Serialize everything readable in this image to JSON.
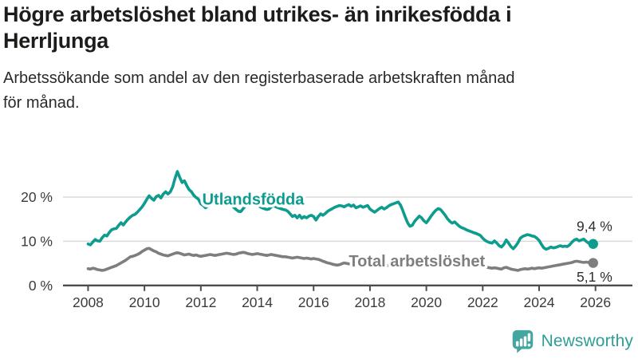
{
  "header": {
    "title": "Högre arbetslöshet bland utrikes- än inrikesfödda i Herrljunga",
    "title_lines": [
      "Högre arbetslöshet bland utrikes- än inrikesfödda i",
      "Herrljunga"
    ],
    "subtitle": "Arbetssökande som andel av den registerbaserade arbetskraften månad för månad.",
    "subtitle_lines": [
      "Arbetssökande som andel av den registerbaserade arbetskraften månad",
      "för månad."
    ]
  },
  "chart_data": {
    "type": "line",
    "title": "Högre arbetslöshet bland utrikes- än inrikesfödda i Herrljunga",
    "subtitle": "Arbetssökande som andel av den registerbaserade arbetskraften månad för månad.",
    "unit": "%",
    "grid": "horizontal",
    "legend": "inline-labels",
    "x_axis": {
      "lim": [
        2007.11,
        2027.31
      ],
      "ticks": [
        2008,
        2010,
        2012,
        2014,
        2016,
        2018,
        2020,
        2022,
        2024,
        2026
      ]
    },
    "y_axis": {
      "lim": [
        0,
        27.6
      ],
      "ticks": [
        {
          "value": 0,
          "label": "0 %"
        },
        {
          "value": 10,
          "label": "10 %"
        },
        {
          "value": 20,
          "label": "20 %"
        }
      ]
    },
    "colors": {
      "grid": "#d8d8d8",
      "axis": "#4c4c4c",
      "tick_text": "#3b3b3b",
      "end_label_text": "#2d2d2d"
    },
    "start_year": 2008,
    "points_per_year": 12,
    "series": [
      {
        "name": "Utlandsfödda",
        "color": "#0d9c8e",
        "end_label": "9,4 %",
        "end_value": 9.4,
        "end_label_position": "above",
        "label_anchor": {
          "year": 2012.05,
          "value": 19.6
        },
        "values": [
          9.4,
          9.2,
          9.8,
          10.4,
          10.1,
          10.0,
          10.8,
          11.4,
          11.2,
          12.0,
          12.6,
          12.8,
          12.9,
          13.6,
          14.2,
          13.7,
          14.4,
          15.0,
          15.5,
          15.9,
          16.1,
          16.6,
          17.2,
          17.8,
          18.6,
          19.5,
          20.3,
          19.7,
          19.3,
          20.1,
          20.4,
          19.8,
          20.7,
          21.2,
          20.7,
          21.2,
          22.3,
          24.2,
          25.8,
          24.5,
          23.3,
          23.7,
          22.6,
          21.7,
          21.2,
          20.4,
          19.9,
          19.5,
          18.5,
          18.1,
          17.6,
          18.0,
          18.5,
          18.8,
          18.5,
          18.9,
          18.5,
          18.2,
          18.7,
          19.0,
          18.8,
          18.3,
          17.7,
          17.2,
          16.8,
          16.7,
          17.4,
          18.0,
          18.4,
          18.7,
          18.3,
          18.5,
          18.2,
          17.9,
          17.6,
          17.4,
          17.2,
          17.3,
          17.8,
          18.1,
          17.8,
          17.6,
          17.4,
          17.2,
          17.1,
          16.8,
          16.2,
          15.6,
          15.9,
          15.3,
          15.9,
          15.2,
          15.6,
          15.3,
          15.7,
          15.9,
          15.6,
          14.8,
          15.6,
          16.2,
          15.9,
          16.3,
          16.8,
          17.1,
          17.4,
          17.7,
          17.9,
          18.1,
          18.0,
          17.8,
          18.1,
          18.3,
          17.9,
          18.2,
          17.6,
          17.8,
          18.0,
          17.7,
          17.9,
          18.1,
          17.3,
          16.9,
          16.6,
          17.0,
          17.4,
          17.7,
          17.3,
          17.6,
          18.0,
          18.3,
          18.5,
          18.7,
          18.9,
          18.2,
          16.9,
          15.5,
          14.2,
          13.4,
          13.6,
          14.5,
          15.1,
          15.7,
          15.3,
          14.6,
          14.2,
          14.9,
          15.7,
          16.4,
          17.0,
          17.4,
          17.2,
          16.6,
          15.9,
          15.1,
          14.5,
          14.1,
          14.4,
          13.9,
          13.4,
          13.1,
          12.9,
          12.6,
          12.4,
          12.2,
          12.0,
          11.8,
          11.6,
          11.3,
          10.7,
          10.2,
          9.9,
          9.7,
          9.6,
          10.1,
          9.6,
          9.0,
          8.7,
          9.3,
          10.3,
          9.6,
          8.8,
          8.3,
          8.9,
          9.7,
          10.7,
          11.1,
          11.3,
          11.5,
          11.4,
          11.2,
          11.1,
          10.7,
          10.2,
          9.3,
          8.5,
          8.2,
          8.4,
          8.7,
          8.5,
          8.6,
          8.8,
          9.0,
          8.8,
          8.9,
          8.8,
          9.2,
          9.8,
          10.3,
          10.5,
          10.1,
          10.3,
          10.5,
          10.0,
          9.6,
          9.5,
          9.4
        ]
      },
      {
        "name": "Total arbetslöshet",
        "color": "#7e7e7e",
        "end_label": "5,1 %",
        "end_value": 5.1,
        "end_label_position": "below",
        "label_anchor": {
          "year": 2017.25,
          "value": 5.6
        },
        "values": [
          3.8,
          3.7,
          3.9,
          3.8,
          3.6,
          3.5,
          3.4,
          3.5,
          3.7,
          3.9,
          4.1,
          4.3,
          4.5,
          4.8,
          5.1,
          5.4,
          5.7,
          6.1,
          6.5,
          6.6,
          6.8,
          7.0,
          7.3,
          7.7,
          8.0,
          8.3,
          8.4,
          8.1,
          7.8,
          7.6,
          7.3,
          7.1,
          6.9,
          6.8,
          6.7,
          6.9,
          7.1,
          7.3,
          7.4,
          7.3,
          7.1,
          6.9,
          7.0,
          7.1,
          6.9,
          6.8,
          6.9,
          6.7,
          6.6,
          6.7,
          6.8,
          6.9,
          7.0,
          6.9,
          6.8,
          6.9,
          7.0,
          7.1,
          7.2,
          7.3,
          7.2,
          7.1,
          7.0,
          7.1,
          7.3,
          7.4,
          7.5,
          7.4,
          7.2,
          7.1,
          7.0,
          7.1,
          7.2,
          7.1,
          7.0,
          6.9,
          6.8,
          6.9,
          7.0,
          6.9,
          6.8,
          6.7,
          6.6,
          6.5,
          6.5,
          6.4,
          6.3,
          6.2,
          6.3,
          6.4,
          6.3,
          6.2,
          6.1,
          6.2,
          6.1,
          6.0,
          6.1,
          6.0,
          5.9,
          5.7,
          5.5,
          5.3,
          5.1,
          5.0,
          4.8,
          4.7,
          4.6,
          4.7,
          4.9,
          5.1,
          5.0,
          4.9,
          4.8,
          4.9,
          4.8,
          4.7,
          4.8,
          4.9,
          4.8,
          4.7,
          4.6,
          4.5,
          4.6,
          4.7,
          4.6,
          4.5,
          4.4,
          4.5,
          4.6,
          4.7,
          4.6,
          4.5,
          4.6,
          4.7,
          4.6,
          4.5,
          4.6,
          4.7,
          4.8,
          4.7,
          4.6,
          4.7,
          4.8,
          4.9,
          5.0,
          5.1,
          5.3,
          5.4,
          5.3,
          5.2,
          5.1,
          5.0,
          4.9,
          4.8,
          4.7,
          4.6,
          4.7,
          4.6,
          4.5,
          4.6,
          4.5,
          4.4,
          4.5,
          4.4,
          4.3,
          4.4,
          4.3,
          4.2,
          4.1,
          4.2,
          4.1,
          4.0,
          3.9,
          4.0,
          3.9,
          3.8,
          3.7,
          4.0,
          4.1,
          3.9,
          3.7,
          3.6,
          3.5,
          3.4,
          3.6,
          3.7,
          3.8,
          3.7,
          3.8,
          3.9,
          3.8,
          3.9,
          4.0,
          3.9,
          4.0,
          4.1,
          4.2,
          4.3,
          4.4,
          4.5,
          4.6,
          4.7,
          4.8,
          4.9,
          5.0,
          5.1,
          5.2,
          5.4,
          5.5,
          5.4,
          5.3,
          5.2,
          5.3,
          5.2,
          5.1,
          5.1
        ]
      }
    ]
  },
  "footer": {
    "brand": "Newsworthy",
    "logo_icon": "newsworthy-speech-bubble-bar-chart-icon",
    "brand_color": "#2f9e96",
    "icon_color": "#43a7a0"
  }
}
